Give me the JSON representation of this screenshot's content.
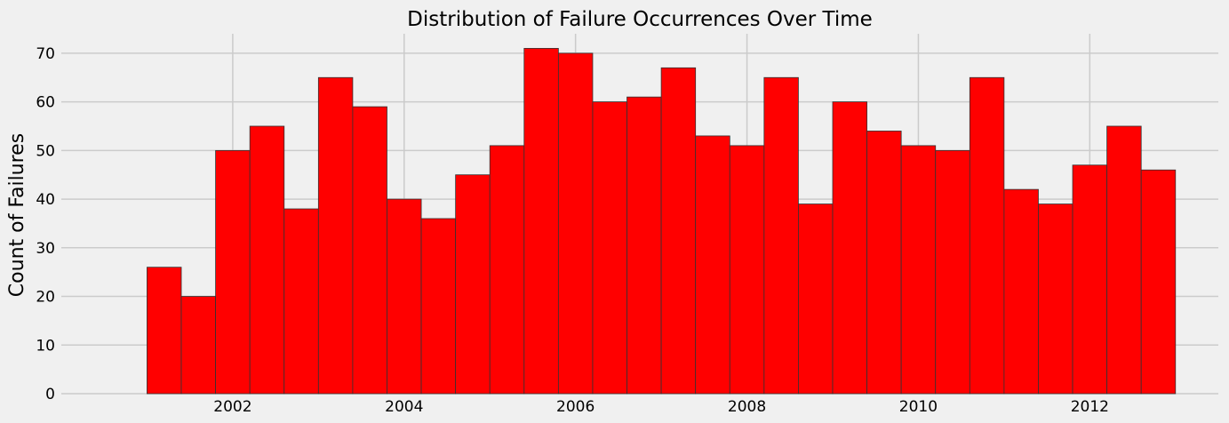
{
  "chart_data": {
    "type": "bar",
    "title": "Distribution of Failure Occurrences Over Time",
    "xlabel": "",
    "ylabel": "Count of Failures",
    "bar_color": "#ff0000",
    "bar_edge_color": "#333333",
    "background": "#f0f0f0",
    "grid": true,
    "x_range": [
      2001.0,
      2013.0
    ],
    "xlim": [
      2000.0,
      2013.5
    ],
    "ylim": [
      0,
      74
    ],
    "x_ticks": [
      2002,
      2004,
      2006,
      2008,
      2010,
      2012
    ],
    "y_ticks": [
      0,
      10,
      20,
      30,
      40,
      50,
      60,
      70
    ],
    "bin_width_years": 0.4,
    "values": [
      26,
      20,
      50,
      55,
      38,
      65,
      59,
      40,
      36,
      45,
      51,
      71,
      70,
      60,
      61,
      67,
      53,
      51,
      65,
      39,
      60,
      54,
      51,
      50,
      65,
      42,
      39,
      47,
      55,
      46
    ]
  }
}
